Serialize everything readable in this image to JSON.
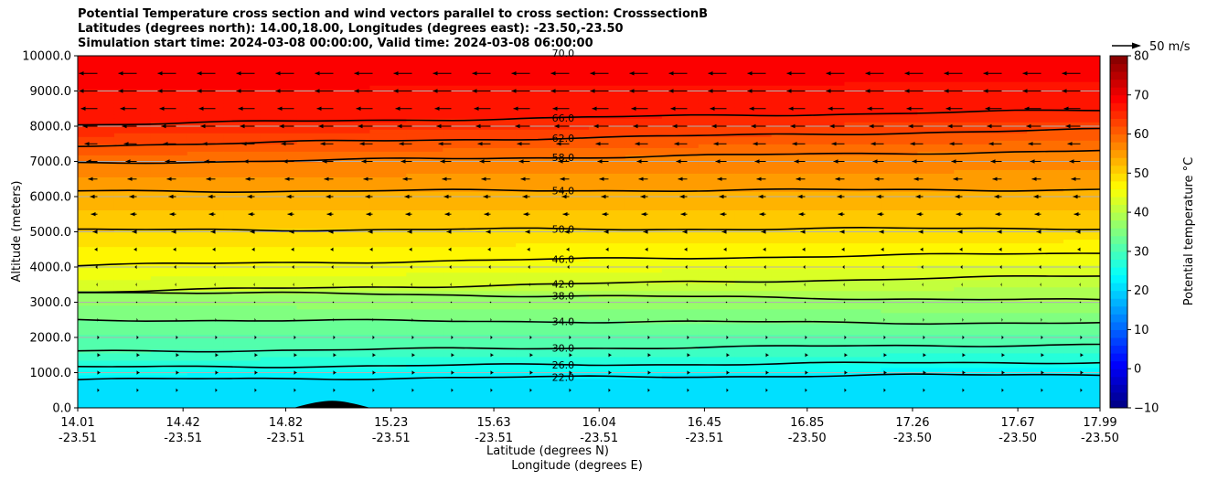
{
  "title_lines": [
    "Potential Temperature cross section and wind vectors parallel to cross section: CrosssectionB",
    "Latitudes (degrees north): 14.00,18.00, Longitudes (degrees east): -23.50,-23.50",
    "Simulation start time: 2024-03-08 00:00:00, Valid time: 2024-03-08 06:00:00"
  ],
  "chart_data": {
    "type": "heatmap",
    "title": "Potential Temperature cross section and wind vectors parallel to cross section: CrosssectionB",
    "xlabel_line1": "Latitude (degrees N)",
    "xlabel_line2": "Longitude (degrees E)",
    "ylabel": "Altitude (meters)",
    "colorbar_label": "Potential temperature $^\\circ$C",
    "ylim": [
      0,
      10000
    ],
    "xlim": [
      14.01,
      17.99
    ],
    "x_ticks": [
      {
        "lat": "14.01",
        "lon": "-23.51",
        "value": 14.01
      },
      {
        "lat": "14.42",
        "lon": "-23.51",
        "value": 14.42
      },
      {
        "lat": "14.82",
        "lon": "-23.51",
        "value": 14.82
      },
      {
        "lat": "15.23",
        "lon": "-23.51",
        "value": 15.23
      },
      {
        "lat": "15.63",
        "lon": "-23.51",
        "value": 15.63
      },
      {
        "lat": "16.04",
        "lon": "-23.51",
        "value": 16.04
      },
      {
        "lat": "16.45",
        "lon": "-23.51",
        "value": 16.45
      },
      {
        "lat": "16.85",
        "lon": "-23.50",
        "value": 16.85
      },
      {
        "lat": "17.26",
        "lon": "-23.50",
        "value": 17.26
      },
      {
        "lat": "17.67",
        "lon": "-23.50",
        "value": 17.67
      },
      {
        "lat": "17.99",
        "lon": "-23.50",
        "value": 17.99
      }
    ],
    "y_ticks": [
      {
        "label": "0.0",
        "value": 0
      },
      {
        "label": "1000.0",
        "value": 1000
      },
      {
        "label": "2000.0",
        "value": 2000
      },
      {
        "label": "3000.0",
        "value": 3000
      },
      {
        "label": "4000.0",
        "value": 4000
      },
      {
        "label": "5000.0",
        "value": 5000
      },
      {
        "label": "6000.0",
        "value": 6000
      },
      {
        "label": "7000.0",
        "value": 7000
      },
      {
        "label": "8000.0",
        "value": 8000
      },
      {
        "label": "9000.0",
        "value": 9000
      },
      {
        "label": "10000.0",
        "value": 10000
      }
    ],
    "colorbar_ticks": [
      {
        "label": "−10",
        "value": -10
      },
      {
        "label": "0",
        "value": 0
      },
      {
        "label": "10",
        "value": 10
      },
      {
        "label": "20",
        "value": 20
      },
      {
        "label": "30",
        "value": 30
      },
      {
        "label": "40",
        "value": 40
      },
      {
        "label": "50",
        "value": 50
      },
      {
        "label": "60",
        "value": 60
      },
      {
        "label": "70",
        "value": 70
      },
      {
        "label": "80",
        "value": 80
      }
    ],
    "colorbar_range": [
      -10,
      80
    ],
    "colormap": "jet",
    "horizontal_gridlines": true,
    "quiver_key": "50 m/s",
    "contours": [
      {
        "level": 22,
        "label": "22.0",
        "left_alt": 800,
        "right_alt": 950
      },
      {
        "level": 26,
        "label": "26.0",
        "left_alt": 1150,
        "right_alt": 1300
      },
      {
        "level": 30,
        "label": "30.0",
        "left_alt": 1600,
        "right_alt": 1800
      },
      {
        "level": 34,
        "label": "34.0",
        "left_alt": 2500,
        "right_alt": 2400
      },
      {
        "level": 38,
        "label": "38.0",
        "left_alt": 3300,
        "right_alt": 3050
      },
      {
        "level": 42,
        "label": "42.0",
        "left_alt": 3300,
        "right_alt": 3750
      },
      {
        "level": 46,
        "label": "46.0",
        "left_alt": 4050,
        "right_alt": 4400
      },
      {
        "level": 50,
        "label": "50.0",
        "left_alt": 5050,
        "right_alt": 5100
      },
      {
        "level": 54,
        "label": "54.0",
        "left_alt": 6150,
        "right_alt": 6200
      },
      {
        "level": 58,
        "label": "58.0",
        "left_alt": 6950,
        "right_alt": 7300
      },
      {
        "level": 62,
        "label": "62.0",
        "left_alt": 7450,
        "right_alt": 7900
      },
      {
        "level": 66,
        "label": "66.0",
        "left_alt": 8050,
        "right_alt": 8450
      },
      {
        "level": 70,
        "label": "70.0",
        "left_alt": 10050,
        "right_alt": 10100
      }
    ],
    "terrain_peak": {
      "lat": 15.0,
      "alt": 200
    },
    "wind_profile": [
      {
        "alt": 500,
        "u": 2
      },
      {
        "alt": 1000,
        "u": 3
      },
      {
        "alt": 1500,
        "u": 3
      },
      {
        "alt": 2000,
        "u": 2
      },
      {
        "alt": 2500,
        "u": 1
      },
      {
        "alt": 3000,
        "u": 0
      },
      {
        "alt": 3500,
        "u": -1
      },
      {
        "alt": 4000,
        "u": -2
      },
      {
        "alt": 4500,
        "u": -3
      },
      {
        "alt": 5000,
        "u": -5
      },
      {
        "alt": 5500,
        "u": -7
      },
      {
        "alt": 6000,
        "u": -8
      },
      {
        "alt": 6500,
        "u": -10
      },
      {
        "alt": 7000,
        "u": -12
      },
      {
        "alt": 7500,
        "u": -14
      },
      {
        "alt": 8000,
        "u": -16
      },
      {
        "alt": 8500,
        "u": -18
      },
      {
        "alt": 9000,
        "u": -20
      },
      {
        "alt": 9500,
        "u": -20
      }
    ]
  }
}
